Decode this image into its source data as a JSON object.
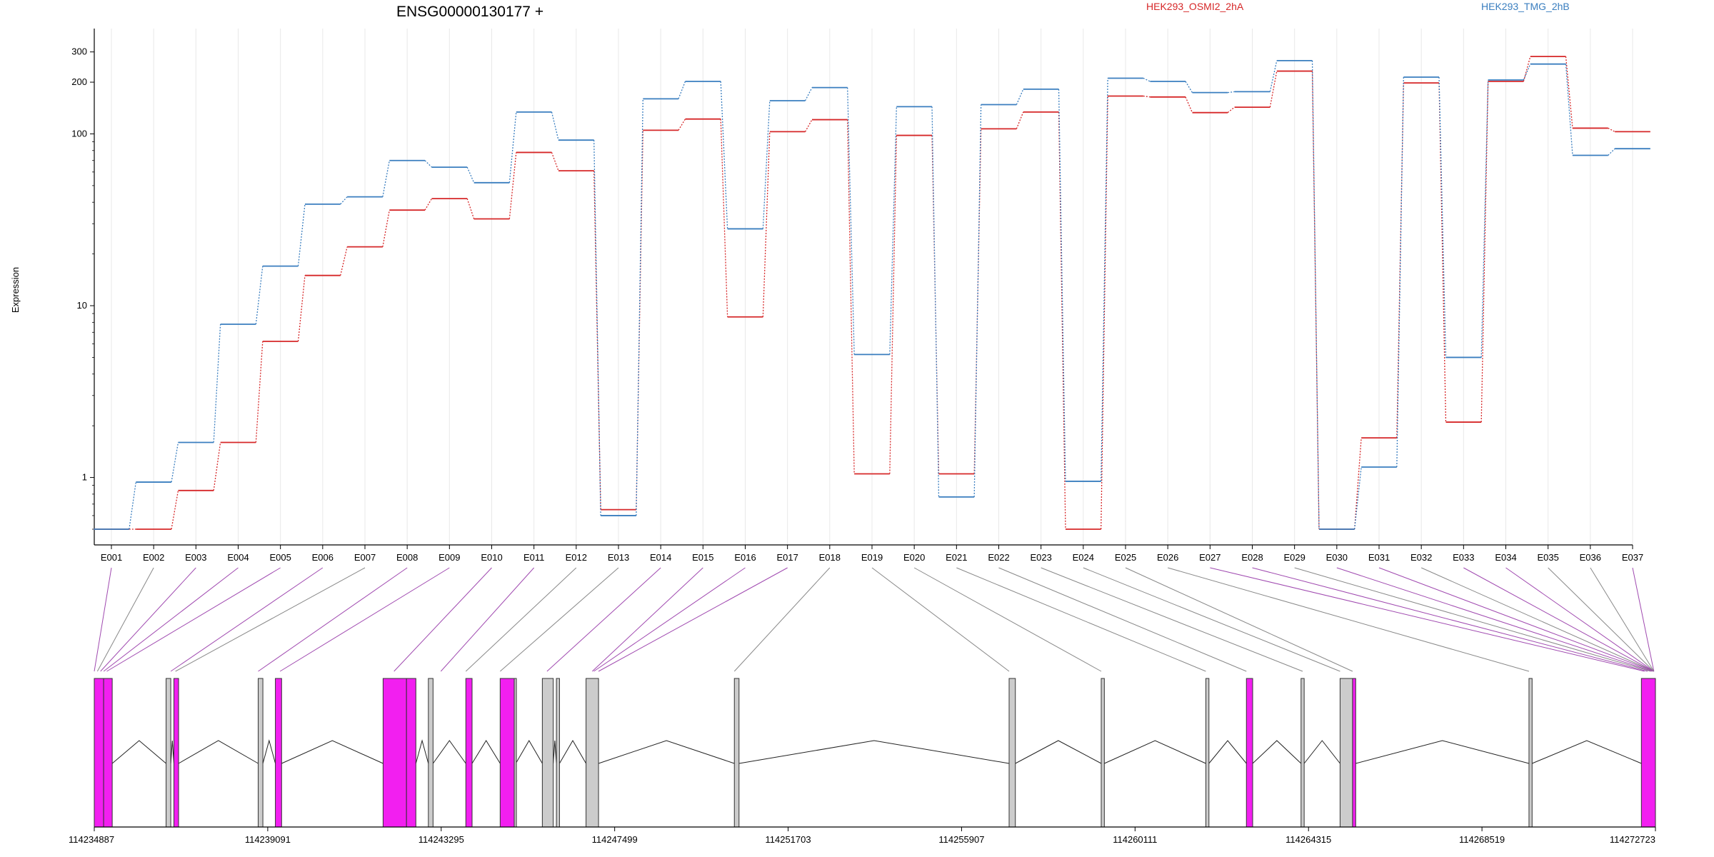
{
  "chart_data": {
    "type": "line",
    "title": "ENSG00000130177 +",
    "ylabel": "Expression",
    "xlabel": "",
    "yscale": "log",
    "ylim": [
      0.5,
      380
    ],
    "y_ticks": [
      {
        "value": 1,
        "label": "1"
      },
      {
        "value": 10,
        "label": "10"
      },
      {
        "value": 100,
        "label": "100"
      },
      {
        "value": 200,
        "label": "200"
      },
      {
        "value": 300,
        "label": "300"
      }
    ],
    "grid": "vertical, at each exon bin",
    "legend": "top-right",
    "categories": [
      "E001",
      "E002",
      "E003",
      "E004",
      "E005",
      "E006",
      "E007",
      "E008",
      "E009",
      "E010",
      "E011",
      "E012",
      "E013",
      "E014",
      "E015",
      "E016",
      "E017",
      "E018",
      "E019",
      "E020",
      "E021",
      "E022",
      "E023",
      "E024",
      "E025",
      "E026",
      "E027",
      "E028",
      "E029",
      "E030",
      "E031",
      "E032",
      "E033",
      "E034",
      "E035",
      "E036",
      "E037"
    ],
    "series": [
      {
        "name": "HEK293_OSMI2_2hA",
        "color": "#d62728",
        "values": [
          0.5,
          0.5,
          0.84,
          1.6,
          6.2,
          15,
          22,
          36,
          42,
          32,
          78,
          61,
          0.65,
          105,
          122,
          8.6,
          103,
          121,
          1.05,
          98,
          1.05,
          107,
          134,
          0.5,
          166,
          164,
          133,
          143,
          232,
          0.5,
          1.7,
          198,
          2.1,
          202,
          282,
          108,
          103
        ]
      },
      {
        "name": "HEK293_TMG_2hB",
        "color": "#3a7ebf",
        "values": [
          0.5,
          0.94,
          1.6,
          7.8,
          17,
          39,
          43,
          70,
          64,
          52,
          134,
          92,
          0.6,
          160,
          202,
          28,
          156,
          186,
          5.2,
          144,
          0.77,
          148,
          182,
          0.95,
          211,
          202,
          174,
          176,
          267,
          0.5,
          1.15,
          214,
          5.0,
          206,
          255,
          75,
          82
        ]
      }
    ]
  },
  "gene_model": {
    "coordinate_labels": [
      "114234887",
      "114239091",
      "114243295",
      "114247499",
      "114251703",
      "114255907",
      "114260111",
      "114264315",
      "114268519",
      "114272723"
    ],
    "highlight_color": "#f21ff0",
    "exon_color": "#cccccc"
  }
}
